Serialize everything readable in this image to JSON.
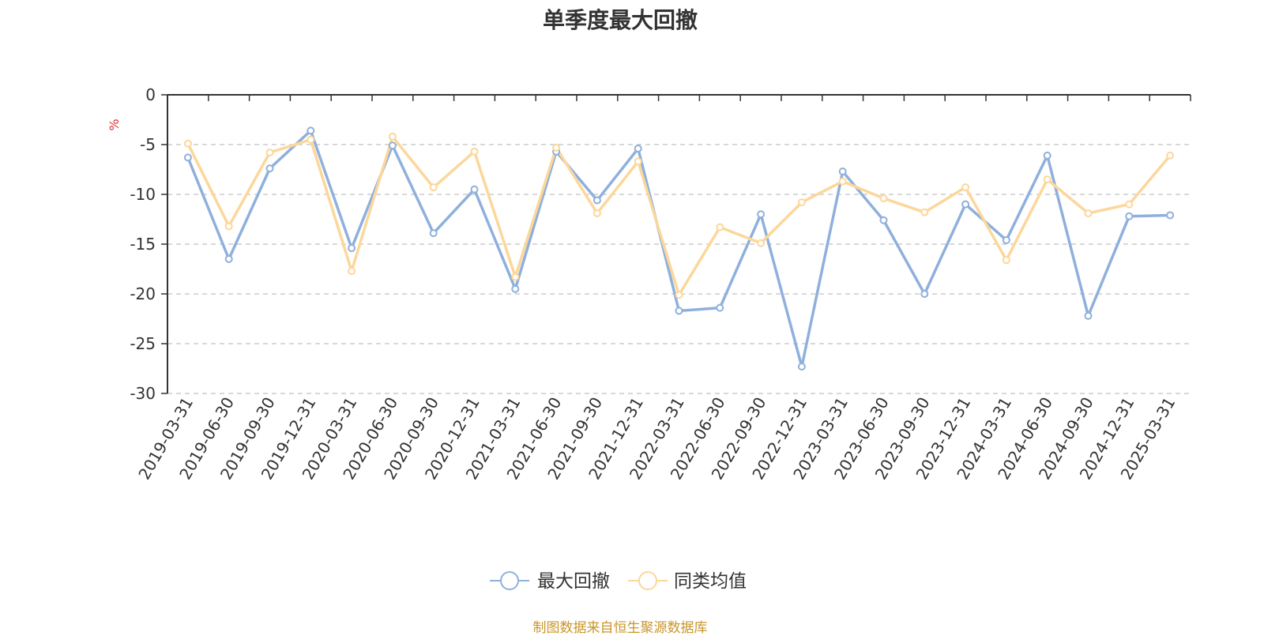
{
  "chart_data": {
    "type": "line",
    "title": "单季度最大回撤",
    "ylabel": "%",
    "ylim": [
      -30,
      0
    ],
    "yticks": [
      0,
      -5,
      -10,
      -15,
      -20,
      -25,
      -30
    ],
    "grid": true,
    "legend_position": "bottom",
    "categories": [
      "2019-03-31",
      "2019-06-30",
      "2019-09-30",
      "2019-12-31",
      "2020-03-31",
      "2020-06-30",
      "2020-09-30",
      "2020-12-31",
      "2021-03-31",
      "2021-06-30",
      "2021-09-30",
      "2021-12-31",
      "2022-03-31",
      "2022-06-30",
      "2022-09-30",
      "2022-12-31",
      "2023-03-31",
      "2023-06-30",
      "2023-09-30",
      "2023-12-31",
      "2024-03-31",
      "2024-06-30",
      "2024-09-30",
      "2024-12-31",
      "2025-03-31"
    ],
    "series": [
      {
        "name": "最大回撤",
        "color": "#8fb0dc",
        "values": [
          -6.3,
          -16.5,
          -7.4,
          -3.6,
          -15.4,
          -5.1,
          -13.9,
          -9.5,
          -19.5,
          -5.7,
          -10.6,
          -5.4,
          -21.7,
          -21.4,
          -12.0,
          -27.3,
          -7.7,
          -12.6,
          -20.0,
          -11.0,
          -14.6,
          -6.1,
          -22.2,
          -12.2,
          -12.1
        ]
      },
      {
        "name": "同类均值",
        "color": "#fcd79a",
        "values": [
          -4.9,
          -13.2,
          -5.8,
          -4.5,
          -17.7,
          -4.2,
          -9.3,
          -5.7,
          -18.3,
          -5.3,
          -11.9,
          -6.7,
          -20.1,
          -13.3,
          -14.9,
          -10.8,
          -8.7,
          -10.4,
          -11.8,
          -9.3,
          -16.6,
          -8.5,
          -11.9,
          -11.0,
          -6.1
        ]
      }
    ]
  },
  "source_note": "制图数据来自恒生聚源数据库"
}
